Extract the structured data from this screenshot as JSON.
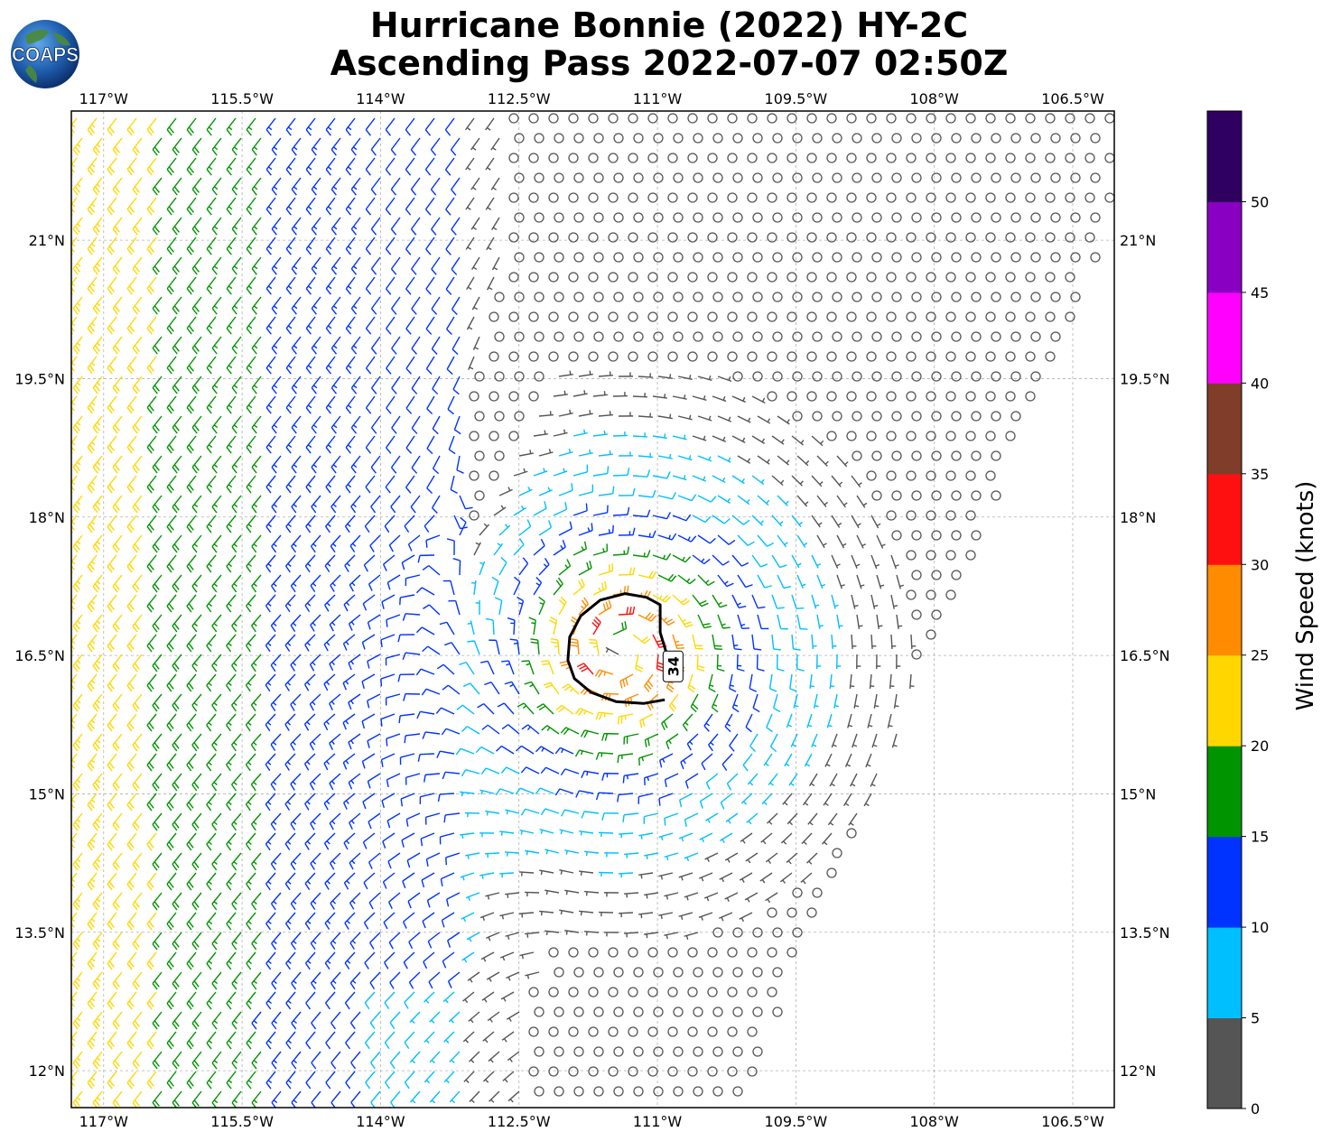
{
  "title": {
    "line1": "Hurricane Bonnie (2022) HY-2C",
    "line2": "Ascending Pass 2022-07-07 02:50Z"
  },
  "logo": {
    "text": "COAPS"
  },
  "map": {
    "lon_range": [
      -117.35,
      -106.05
    ],
    "lat_range": [
      11.6,
      22.4
    ],
    "lon_ticks": [
      {
        "value": -117.0,
        "label": "117°W"
      },
      {
        "value": -115.5,
        "label": "115.5°W"
      },
      {
        "value": -114.0,
        "label": "114°W"
      },
      {
        "value": -112.5,
        "label": "112.5°W"
      },
      {
        "value": -111.0,
        "label": "111°W"
      },
      {
        "value": -109.5,
        "label": "109.5°W"
      },
      {
        "value": -108.0,
        "label": "108°W"
      },
      {
        "value": -106.5,
        "label": "106.5°W"
      }
    ],
    "lat_ticks": [
      {
        "value": 21.0,
        "label": "21°N"
      },
      {
        "value": 19.5,
        "label": "19.5°N"
      },
      {
        "value": 18.0,
        "label": "18°N"
      },
      {
        "value": 16.5,
        "label": "16.5°N"
      },
      {
        "value": 15.0,
        "label": "15°N"
      },
      {
        "value": 13.5,
        "label": "13.5°N"
      },
      {
        "value": 12.0,
        "label": "12°N"
      }
    ],
    "gridlines": true,
    "storm_center": {
      "lon": -111.4,
      "lat": 16.55
    },
    "contour_label": "34",
    "contour_34kt": [
      [
        -110.87,
        16.42
      ],
      [
        -110.97,
        16.75
      ],
      [
        -110.97,
        17.05
      ],
      [
        -111.12,
        17.13
      ],
      [
        -111.35,
        17.17
      ],
      [
        -111.62,
        17.1
      ],
      [
        -111.83,
        16.93
      ],
      [
        -111.95,
        16.7
      ],
      [
        -111.97,
        16.45
      ],
      [
        -111.9,
        16.25
      ],
      [
        -111.72,
        16.1
      ],
      [
        -111.45,
        16.0
      ],
      [
        -111.15,
        15.98
      ],
      [
        -110.92,
        16.02
      ]
    ]
  },
  "colorbar": {
    "label": "Wind Speed (knots)",
    "ticks": [
      "0",
      "5",
      "10",
      "15",
      "20",
      "25",
      "30",
      "35",
      "40",
      "45",
      "50"
    ],
    "bins": [
      {
        "min": 0,
        "max": 5,
        "color": "#555555"
      },
      {
        "min": 5,
        "max": 10,
        "color": "#00bfff"
      },
      {
        "min": 10,
        "max": 15,
        "color": "#0033ff"
      },
      {
        "min": 15,
        "max": 20,
        "color": "#009400"
      },
      {
        "min": 20,
        "max": 25,
        "color": "#ffd700"
      },
      {
        "min": 25,
        "max": 30,
        "color": "#ff8c00"
      },
      {
        "min": 30,
        "max": 35,
        "color": "#ff1010"
      },
      {
        "min": 35,
        "max": 40,
        "color": "#7f3d2a"
      },
      {
        "min": 40,
        "max": 45,
        "color": "#ff00ff"
      },
      {
        "min": 45,
        "max": 50,
        "color": "#8a00c2"
      },
      {
        "min": 50,
        "max": 55,
        "color": "#2f0060"
      }
    ]
  }
}
